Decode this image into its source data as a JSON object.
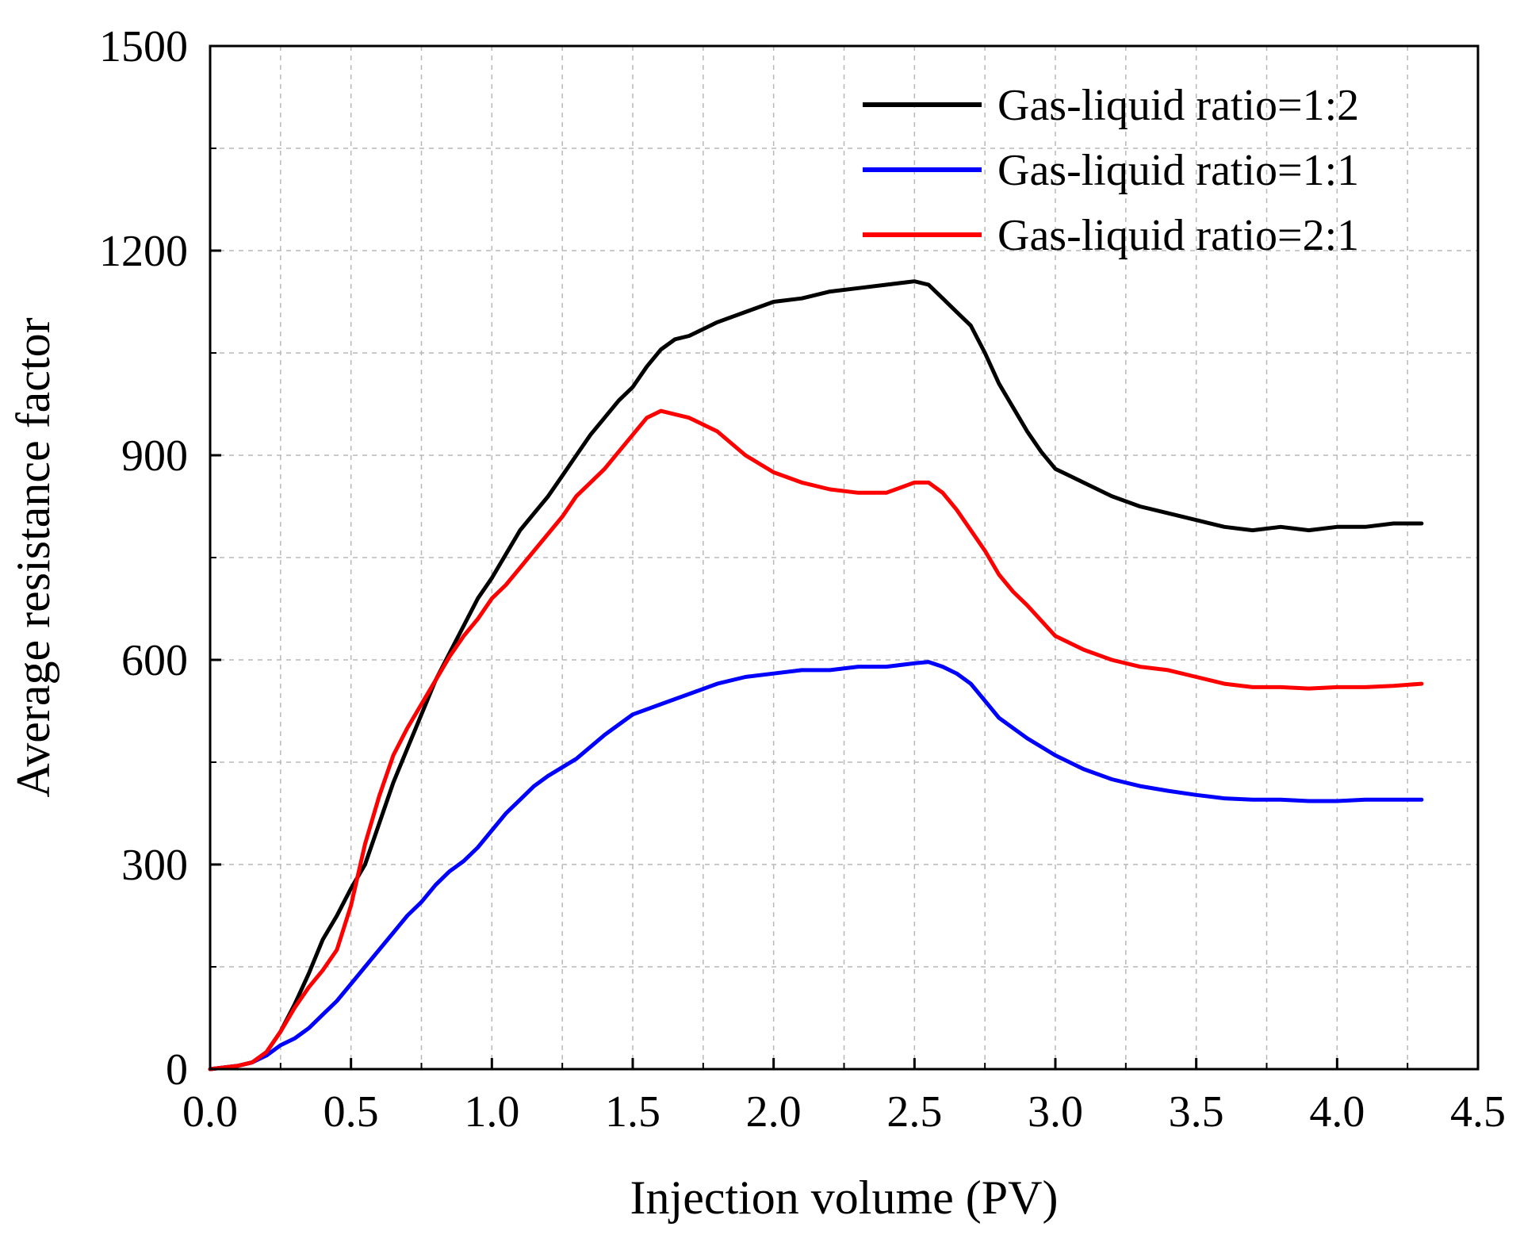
{
  "chart_data": {
    "type": "line",
    "title": "",
    "xlabel": "Injection volume (PV)",
    "ylabel": "Average resistance factor",
    "xlim": [
      0,
      4.5
    ],
    "ylim": [
      0,
      1500
    ],
    "xticks": [
      0.0,
      0.5,
      1.0,
      1.5,
      2.0,
      2.5,
      3.0,
      3.5,
      4.0,
      4.5
    ],
    "xtick_labels": [
      "0.0",
      "0.5",
      "1.0",
      "1.5",
      "2.0",
      "2.5",
      "3.0",
      "3.5",
      "4.0",
      "4.5"
    ],
    "yticks": [
      0,
      300,
      600,
      900,
      1200,
      1500
    ],
    "ytick_labels": [
      "0",
      "300",
      "600",
      "900",
      "1200",
      "1500"
    ],
    "grid": true,
    "legend_position": "top-right",
    "series": [
      {
        "name": "Gas-liquid ratio=1:2",
        "color": "#000000",
        "x": [
          0.0,
          0.1,
          0.15,
          0.2,
          0.25,
          0.3,
          0.35,
          0.4,
          0.45,
          0.5,
          0.55,
          0.6,
          0.65,
          0.7,
          0.75,
          0.8,
          0.85,
          0.9,
          0.95,
          1.0,
          1.05,
          1.1,
          1.15,
          1.2,
          1.25,
          1.3,
          1.35,
          1.4,
          1.45,
          1.5,
          1.55,
          1.6,
          1.65,
          1.7,
          1.8,
          1.9,
          2.0,
          2.1,
          2.2,
          2.3,
          2.4,
          2.5,
          2.55,
          2.6,
          2.65,
          2.7,
          2.75,
          2.8,
          2.85,
          2.9,
          2.95,
          3.0,
          3.05,
          3.1,
          3.2,
          3.3,
          3.4,
          3.5,
          3.6,
          3.7,
          3.8,
          3.9,
          4.0,
          4.1,
          4.2,
          4.3
        ],
        "y": [
          0,
          5,
          10,
          25,
          55,
          95,
          140,
          190,
          225,
          265,
          300,
          360,
          420,
          470,
          520,
          570,
          610,
          650,
          690,
          720,
          755,
          790,
          815,
          840,
          870,
          900,
          930,
          955,
          980,
          1000,
          1030,
          1055,
          1070,
          1075,
          1095,
          1110,
          1125,
          1130,
          1140,
          1145,
          1150,
          1155,
          1150,
          1130,
          1110,
          1090,
          1050,
          1005,
          970,
          935,
          905,
          880,
          870,
          860,
          840,
          825,
          815,
          805,
          795,
          790,
          795,
          790,
          795,
          795,
          800,
          800
        ]
      },
      {
        "name": "Gas-liquid ratio=1:1",
        "color": "#0000ff",
        "x": [
          0.0,
          0.1,
          0.15,
          0.2,
          0.25,
          0.3,
          0.35,
          0.4,
          0.45,
          0.5,
          0.55,
          0.6,
          0.65,
          0.7,
          0.75,
          0.8,
          0.85,
          0.9,
          0.95,
          1.0,
          1.05,
          1.1,
          1.15,
          1.2,
          1.3,
          1.4,
          1.5,
          1.6,
          1.7,
          1.8,
          1.9,
          2.0,
          2.1,
          2.2,
          2.3,
          2.4,
          2.5,
          2.55,
          2.6,
          2.65,
          2.7,
          2.75,
          2.8,
          2.85,
          2.9,
          3.0,
          3.1,
          3.2,
          3.3,
          3.4,
          3.5,
          3.6,
          3.7,
          3.8,
          3.9,
          4.0,
          4.1,
          4.2,
          4.3
        ],
        "y": [
          0,
          5,
          10,
          20,
          35,
          45,
          60,
          80,
          100,
          125,
          150,
          175,
          200,
          225,
          245,
          270,
          290,
          305,
          325,
          350,
          375,
          395,
          415,
          430,
          455,
          490,
          520,
          535,
          550,
          565,
          575,
          580,
          585,
          585,
          590,
          590,
          595,
          597,
          590,
          580,
          565,
          540,
          515,
          500,
          485,
          460,
          440,
          425,
          415,
          408,
          402,
          397,
          395,
          395,
          393,
          393,
          395,
          395,
          395
        ]
      },
      {
        "name": "Gas-liquid ratio=2:1",
        "color": "#ff0000",
        "x": [
          0.0,
          0.1,
          0.15,
          0.2,
          0.25,
          0.3,
          0.35,
          0.4,
          0.45,
          0.5,
          0.55,
          0.6,
          0.65,
          0.7,
          0.75,
          0.8,
          0.85,
          0.9,
          0.95,
          1.0,
          1.05,
          1.1,
          1.15,
          1.2,
          1.25,
          1.3,
          1.35,
          1.4,
          1.45,
          1.5,
          1.55,
          1.6,
          1.65,
          1.7,
          1.8,
          1.9,
          2.0,
          2.1,
          2.2,
          2.3,
          2.4,
          2.5,
          2.55,
          2.6,
          2.65,
          2.7,
          2.75,
          2.8,
          2.85,
          2.9,
          3.0,
          3.1,
          3.2,
          3.3,
          3.4,
          3.5,
          3.6,
          3.7,
          3.8,
          3.9,
          4.0,
          4.1,
          4.2,
          4.3
        ],
        "y": [
          0,
          5,
          10,
          25,
          55,
          90,
          120,
          145,
          175,
          240,
          330,
          400,
          460,
          500,
          535,
          570,
          605,
          635,
          660,
          690,
          710,
          735,
          760,
          785,
          810,
          840,
          860,
          880,
          905,
          930,
          955,
          965,
          960,
          955,
          935,
          900,
          875,
          860,
          850,
          845,
          845,
          860,
          860,
          845,
          820,
          790,
          760,
          725,
          700,
          680,
          635,
          615,
          600,
          590,
          585,
          575,
          565,
          560,
          560,
          558,
          560,
          560,
          562,
          565
        ]
      }
    ]
  }
}
